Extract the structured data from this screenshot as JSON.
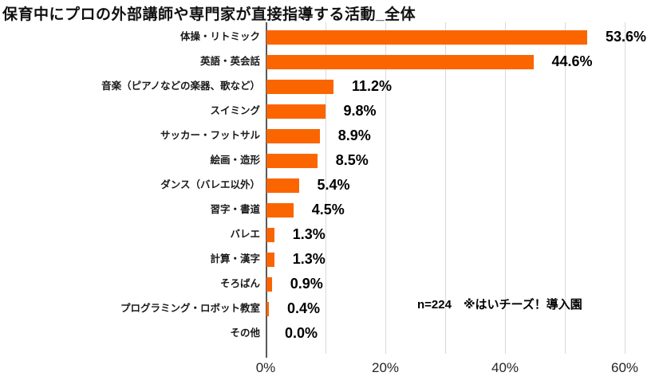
{
  "title": "保育中にプロの外部講師や専門家が直接指導する活動_全体",
  "annotation": {
    "text": "n=224　※はいチーズ！導入園"
  },
  "colors": {
    "bar": "#FB6500",
    "gridline": "#D9D9D9",
    "axis": "#595959",
    "text": "#000000"
  },
  "chart_data": {
    "type": "bar",
    "orientation": "horizontal",
    "title": "保育中にプロの外部講師や専門家が直接指導する活動_全体",
    "categories": [
      "体操・リトミック",
      "英語・英会話",
      "音楽（ピアノなどの楽器、歌など）",
      "スイミング",
      "サッカー・フットサル",
      "絵画・造形",
      "ダンス（バレエ以外）",
      "習字・書道",
      "バレエ",
      "計算・漢字",
      "そろばん",
      "プログラミング・ロボット教室",
      "その他"
    ],
    "values": [
      53.6,
      44.6,
      11.2,
      9.8,
      8.9,
      8.5,
      5.4,
      4.5,
      1.3,
      1.3,
      0.9,
      0.4,
      0.0
    ],
    "value_labels": [
      "53.6%",
      "44.6%",
      "11.2%",
      "9.8%",
      "8.9%",
      "8.5%",
      "5.4%",
      "4.5%",
      "1.3%",
      "1.3%",
      "0.9%",
      "0.4%",
      "0.0%"
    ],
    "xlabel": "",
    "ylabel": "",
    "xlim": [
      0,
      60
    ],
    "x_ticks": [
      {
        "value": 0,
        "label": "0%"
      },
      {
        "value": 20,
        "label": "20%"
      },
      {
        "value": 40,
        "label": "40%"
      },
      {
        "value": 60,
        "label": "60%"
      }
    ],
    "minor_grid_step_pct": 10,
    "grid": "vertical minor gridlines every 10%",
    "legend_position": "none"
  }
}
